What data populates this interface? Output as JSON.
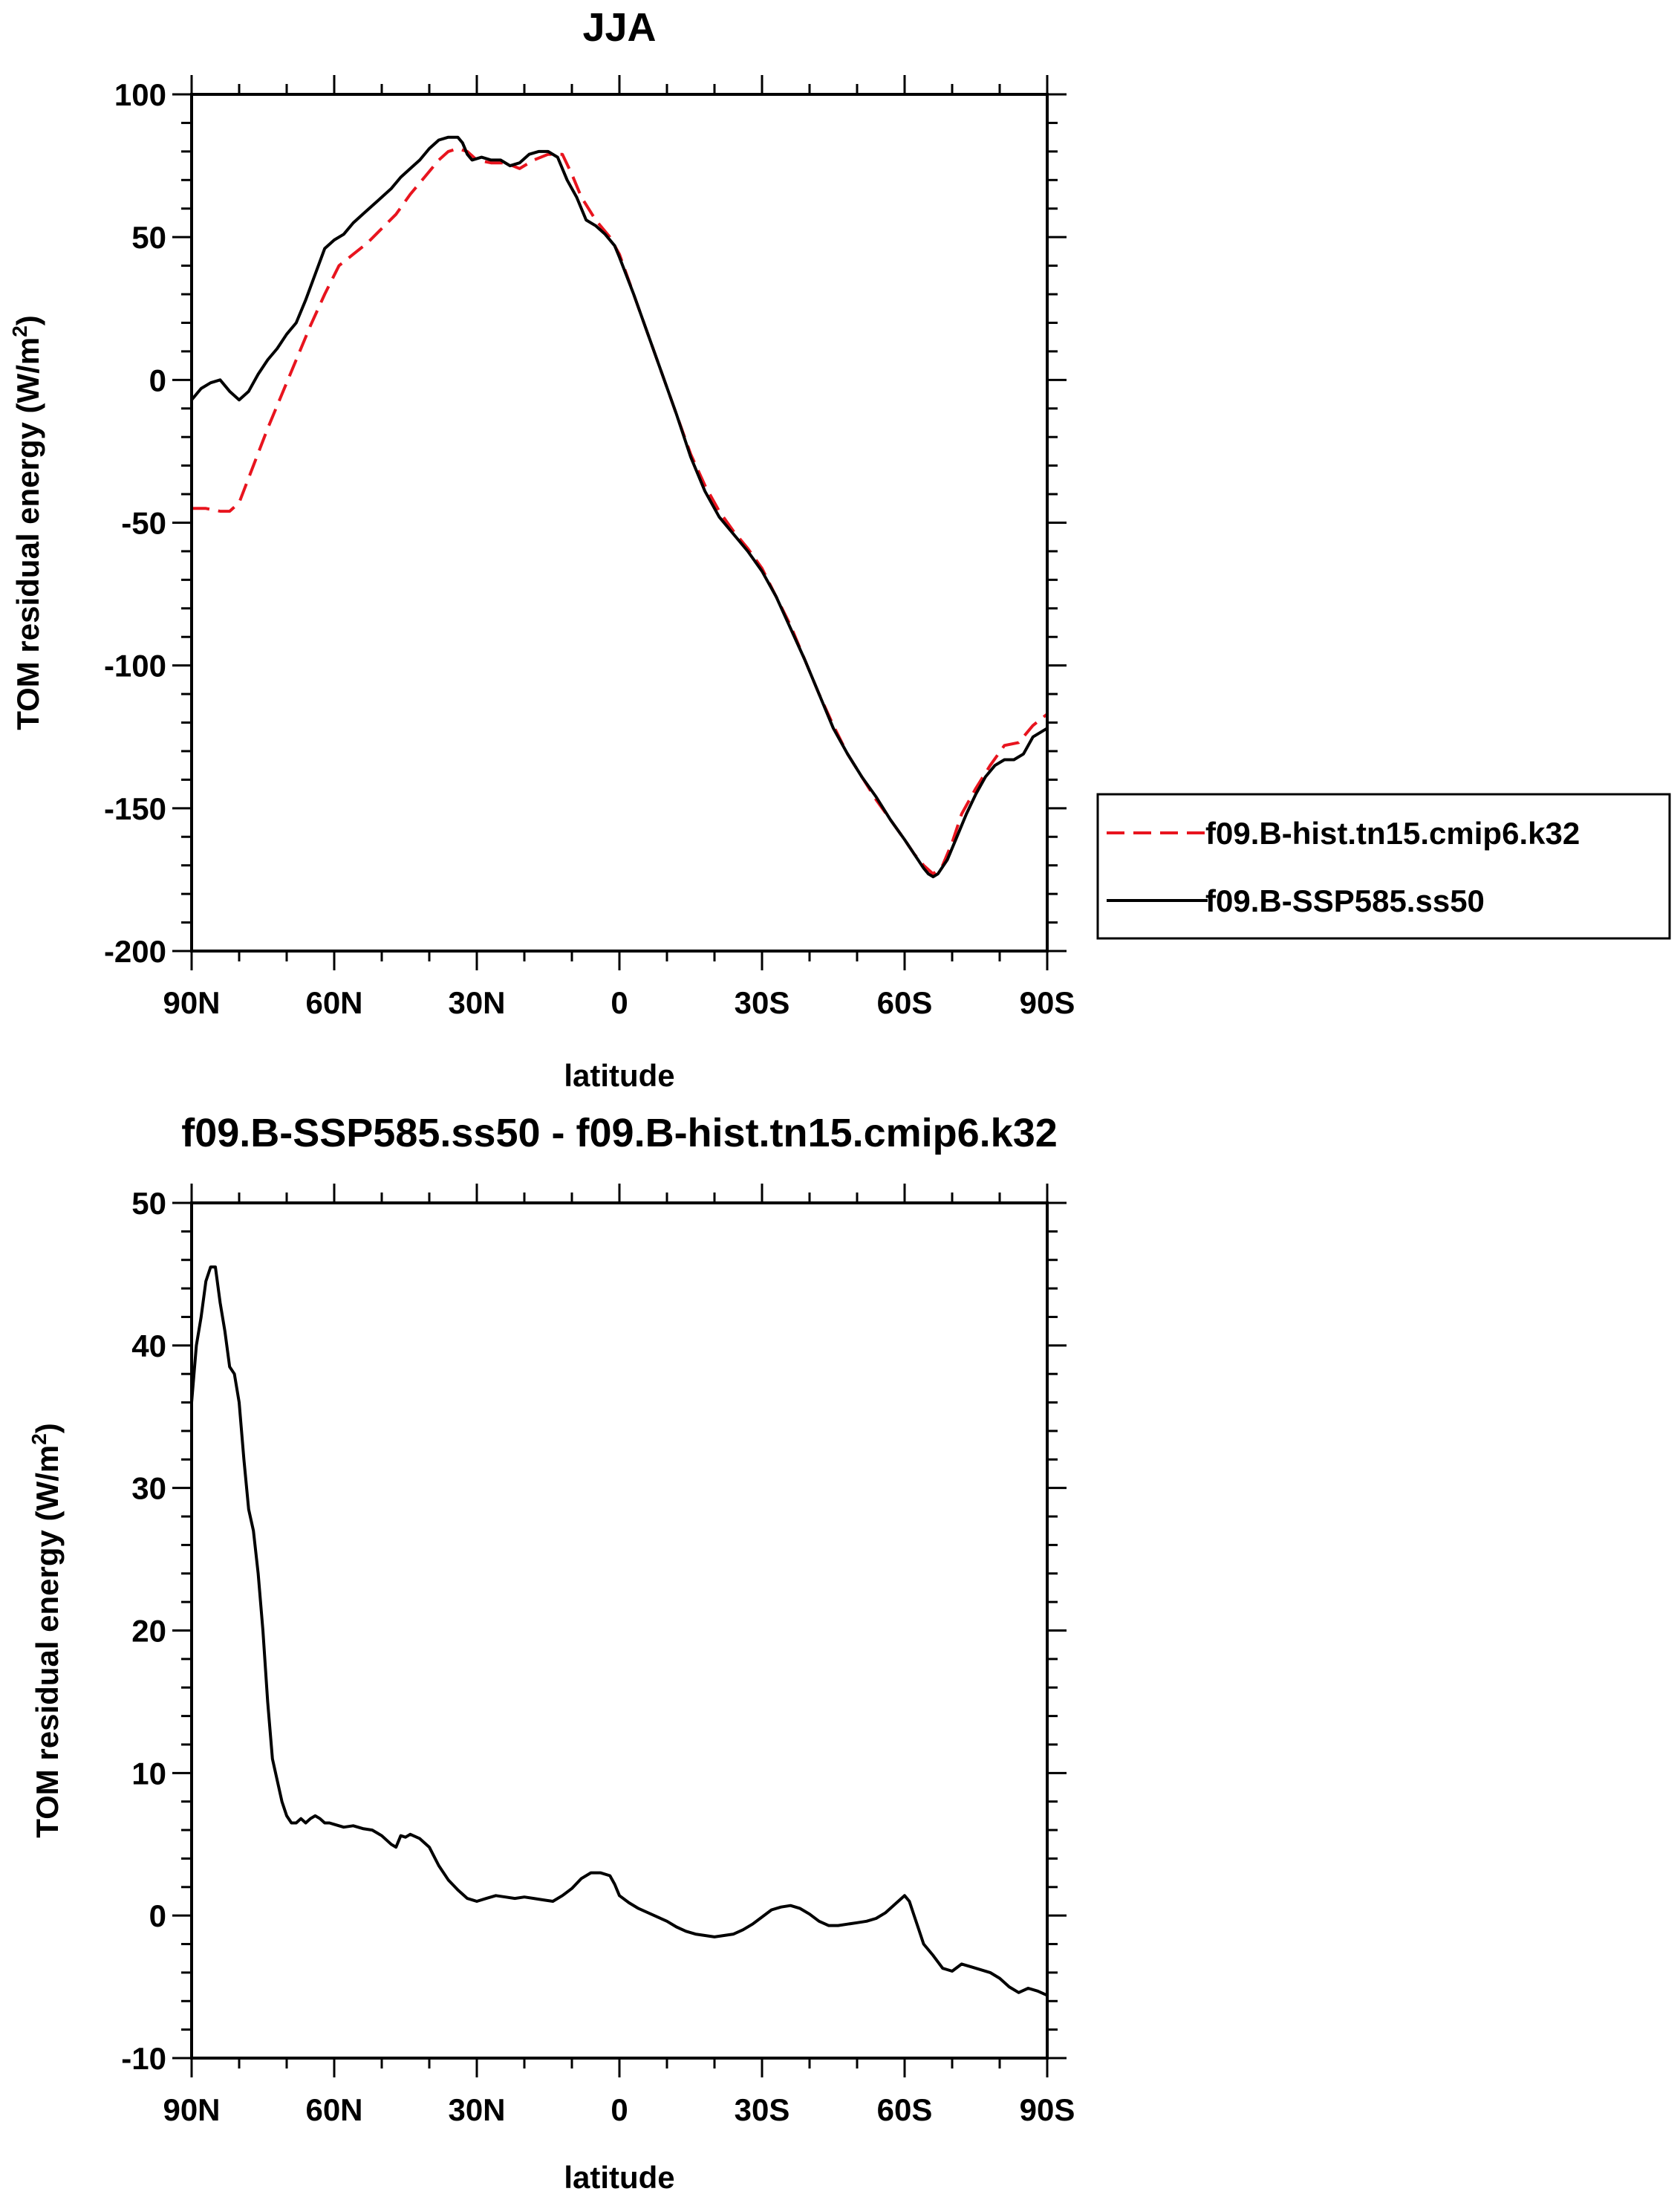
{
  "chart_data": [
    {
      "type": "line",
      "title": "JJA",
      "xlabel": "latitude",
      "ylabel": "TOM residual energy",
      "ylabel_unit": "(W/m",
      "ylabel_sup": "2",
      "ylabel_close": ")",
      "xlim": [
        90,
        -90
      ],
      "ylim": [
        -200,
        100
      ],
      "xticks": [
        {
          "value": 90,
          "label": "90N"
        },
        {
          "value": 60,
          "label": "60N"
        },
        {
          "value": 30,
          "label": "30N"
        },
        {
          "value": 0,
          "label": "0"
        },
        {
          "value": -30,
          "label": "30S"
        },
        {
          "value": -60,
          "label": "60S"
        },
        {
          "value": -90,
          "label": "90S"
        }
      ],
      "yticks": [
        {
          "value": 100,
          "label": "100"
        },
        {
          "value": 50,
          "label": "50"
        },
        {
          "value": 0,
          "label": "0"
        },
        {
          "value": -50,
          "label": "-50"
        },
        {
          "value": -100,
          "label": "-100"
        },
        {
          "value": -150,
          "label": "-150"
        },
        {
          "value": -200,
          "label": "-200"
        }
      ],
      "legend_position": "right",
      "series": [
        {
          "name": "f09.B-hist.tn15.cmip6.k32",
          "color": "#e8141e",
          "style": "dashed",
          "x": [
            90,
            87,
            84,
            82,
            80,
            77,
            74,
            71,
            68,
            65,
            62,
            59,
            56,
            53,
            50,
            47,
            44,
            41,
            38,
            36,
            34,
            32,
            30,
            27,
            24,
            21,
            18,
            15,
            12,
            10,
            8,
            5,
            2,
            0,
            -3,
            -6,
            -9,
            -12,
            -15,
            -18,
            -21,
            -24,
            -27,
            -30,
            -33,
            -36,
            -39,
            -42,
            -45,
            -48,
            -51,
            -54,
            -57,
            -60,
            -62,
            -64,
            -66,
            -68,
            -70,
            -72,
            -75,
            -78,
            -81,
            -84,
            -87,
            -90
          ],
          "y": [
            -45,
            -45,
            -46,
            -46,
            -43,
            -30,
            -17,
            -5,
            7,
            19,
            30,
            40,
            44,
            48,
            53,
            58,
            65,
            71,
            77,
            80,
            81,
            80,
            77,
            76,
            76,
            74,
            77,
            79,
            79,
            72,
            64,
            56,
            50,
            44,
            30,
            16,
            2,
            -12,
            -26,
            -37,
            -46,
            -53,
            -59,
            -66,
            -76,
            -86,
            -98,
            -110,
            -121,
            -131,
            -139,
            -147,
            -154,
            -161,
            -166,
            -170,
            -173,
            -170,
            -162,
            -152,
            -143,
            -135,
            -128,
            -127,
            -121,
            -117
          ]
        },
        {
          "name": "f09.B-SSP585.ss50",
          "color": "#000000",
          "style": "solid",
          "x": [
            90,
            88,
            86,
            84,
            82,
            80,
            78,
            76,
            74,
            72,
            70,
            68,
            66,
            64,
            62,
            60,
            58,
            56,
            54,
            52,
            50,
            48,
            46,
            44,
            42,
            40,
            38,
            36,
            35,
            34,
            33,
            32,
            31,
            29,
            27,
            25,
            23,
            21,
            19,
            17,
            15,
            13,
            11,
            9,
            7,
            5,
            3,
            1,
            0,
            -3,
            -6,
            -9,
            -12,
            -15,
            -18,
            -21,
            -24,
            -27,
            -30,
            -33,
            -36,
            -39,
            -42,
            -45,
            -48,
            -51,
            -54,
            -57,
            -60,
            -62,
            -64,
            -65,
            -66,
            -67,
            -69,
            -71,
            -73,
            -75,
            -77,
            -79,
            -81,
            -83,
            -85,
            -87,
            -90
          ],
          "y": [
            -7,
            -3,
            -1,
            0,
            -4,
            -7,
            -4,
            2,
            7,
            11,
            16,
            20,
            28,
            37,
            46,
            49,
            51,
            55,
            58,
            61,
            64,
            67,
            71,
            74,
            77,
            81,
            84,
            85,
            85,
            85,
            83,
            79,
            77,
            78,
            77,
            77,
            75,
            76,
            79,
            80,
            80,
            78,
            70,
            64,
            56,
            54,
            51,
            47,
            43,
            30,
            16,
            2,
            -12,
            -27,
            -39,
            -48,
            -54,
            -60,
            -67,
            -76,
            -87,
            -98,
            -110,
            -122,
            -131,
            -139,
            -146,
            -154,
            -161,
            -166,
            -171,
            -173,
            -174,
            -173,
            -168,
            -160,
            -152,
            -145,
            -139,
            -135,
            -133,
            -133,
            -131,
            -125,
            -122
          ]
        }
      ],
      "grid": false
    },
    {
      "type": "line",
      "title": "f09.B-SSP585.ss50 - f09.B-hist.tn15.cmip6.k32",
      "xlabel": "latitude",
      "ylabel": "TOM residual energy",
      "ylabel_unit": "(W/m",
      "ylabel_sup": "2",
      "ylabel_close": ")",
      "xlim": [
        90,
        -90
      ],
      "ylim": [
        -10,
        50
      ],
      "xticks": [
        {
          "value": 90,
          "label": "90N"
        },
        {
          "value": 60,
          "label": "60N"
        },
        {
          "value": 30,
          "label": "30N"
        },
        {
          "value": 0,
          "label": "0"
        },
        {
          "value": -30,
          "label": "30S"
        },
        {
          "value": -60,
          "label": "60S"
        },
        {
          "value": -90,
          "label": "90S"
        }
      ],
      "yticks": [
        {
          "value": 50,
          "label": "50"
        },
        {
          "value": 40,
          "label": "40"
        },
        {
          "value": 30,
          "label": "30"
        },
        {
          "value": 20,
          "label": "20"
        },
        {
          "value": 10,
          "label": "10"
        },
        {
          "value": 0,
          "label": "0"
        },
        {
          "value": -10,
          "label": "-10"
        }
      ],
      "series": [
        {
          "color": "#000000",
          "style": "solid",
          "x": [
            90,
            89,
            88,
            87,
            86,
            85,
            84,
            83,
            82,
            81,
            80,
            79,
            78,
            77,
            76,
            75,
            74,
            73,
            72,
            71,
            70,
            69,
            68,
            67,
            66,
            65,
            64,
            63,
            62,
            61,
            60,
            58,
            56,
            54,
            52,
            50,
            48,
            47,
            46,
            45,
            44,
            42,
            40,
            38,
            36,
            34,
            32,
            30,
            28,
            26,
            24,
            22,
            20,
            18,
            16,
            14,
            12,
            10,
            8,
            6,
            4,
            2,
            1,
            0,
            -2,
            -4,
            -6,
            -8,
            -10,
            -12,
            -14,
            -16,
            -18,
            -20,
            -22,
            -24,
            -26,
            -28,
            -30,
            -32,
            -34,
            -36,
            -38,
            -40,
            -42,
            -44,
            -46,
            -48,
            -50,
            -52,
            -54,
            -56,
            -58,
            -60,
            -61,
            -62,
            -63,
            -64,
            -66,
            -68,
            -70,
            -72,
            -74,
            -76,
            -78,
            -80,
            -82,
            -84,
            -86,
            -88,
            -90
          ],
          "y": [
            36,
            40,
            42,
            44.5,
            45.5,
            45.5,
            43,
            41,
            38.5,
            38,
            36,
            32,
            28.5,
            27,
            24,
            20,
            15,
            11,
            9.5,
            8,
            7,
            6.5,
            6.5,
            6.8,
            6.5,
            6.8,
            7,
            6.8,
            6.5,
            6.5,
            6.4,
            6.2,
            6.3,
            6.1,
            6.0,
            5.6,
            5.0,
            4.8,
            5.6,
            5.5,
            5.7,
            5.4,
            4.8,
            3.5,
            2.5,
            1.8,
            1.2,
            1.0,
            1.2,
            1.4,
            1.3,
            1.2,
            1.3,
            1.2,
            1.1,
            1.0,
            1.4,
            1.9,
            2.6,
            3.0,
            3.0,
            2.8,
            2.2,
            1.4,
            0.9,
            0.5,
            0.2,
            -0.1,
            -0.4,
            -0.8,
            -1.1,
            -1.3,
            -1.4,
            -1.5,
            -1.4,
            -1.3,
            -1.0,
            -0.6,
            -0.1,
            0.4,
            0.6,
            0.7,
            0.5,
            0.1,
            -0.4,
            -0.7,
            -0.7,
            -0.6,
            -0.5,
            -0.4,
            -0.2,
            0.2,
            0.8,
            1.4,
            1.0,
            0.0,
            -1.0,
            -2.0,
            -2.8,
            -3.7,
            -3.9,
            -3.4,
            -3.6,
            -3.8,
            -4.0,
            -4.4,
            -5.0,
            -5.4,
            -5.1,
            -5.3,
            -5.6
          ]
        }
      ],
      "grid": false
    }
  ]
}
